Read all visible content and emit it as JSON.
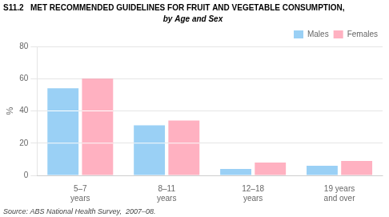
{
  "chart_data": {
    "type": "bar",
    "title": "S11.2   MET RECOMMENDED GUIDELINES FOR FRUIT AND VEGETABLE CONSUMPTION,",
    "subtitle": "by Age and Sex",
    "source": "Source: ABS National Health Survey,  2007–08.",
    "categories": [
      "5–7\nyears",
      "8–11\nyears",
      "12–18\nyears",
      "19 years\nand over"
    ],
    "series": [
      {
        "name": "Males",
        "values": [
          54,
          31,
          4,
          6
        ],
        "ci_lines": [
          [
            20,
            40
          ],
          [
            20
          ],
          [],
          []
        ]
      },
      {
        "name": "Females",
        "values": [
          60,
          34,
          8,
          9
        ],
        "ci_lines": [
          [
            20,
            40
          ],
          [
            20
          ],
          [],
          []
        ]
      }
    ],
    "ylabel": "%",
    "ylim": [
      0,
      80
    ],
    "yticks": [
      0,
      20,
      40,
      60,
      80
    ],
    "grid": true,
    "legend": "upper right"
  }
}
